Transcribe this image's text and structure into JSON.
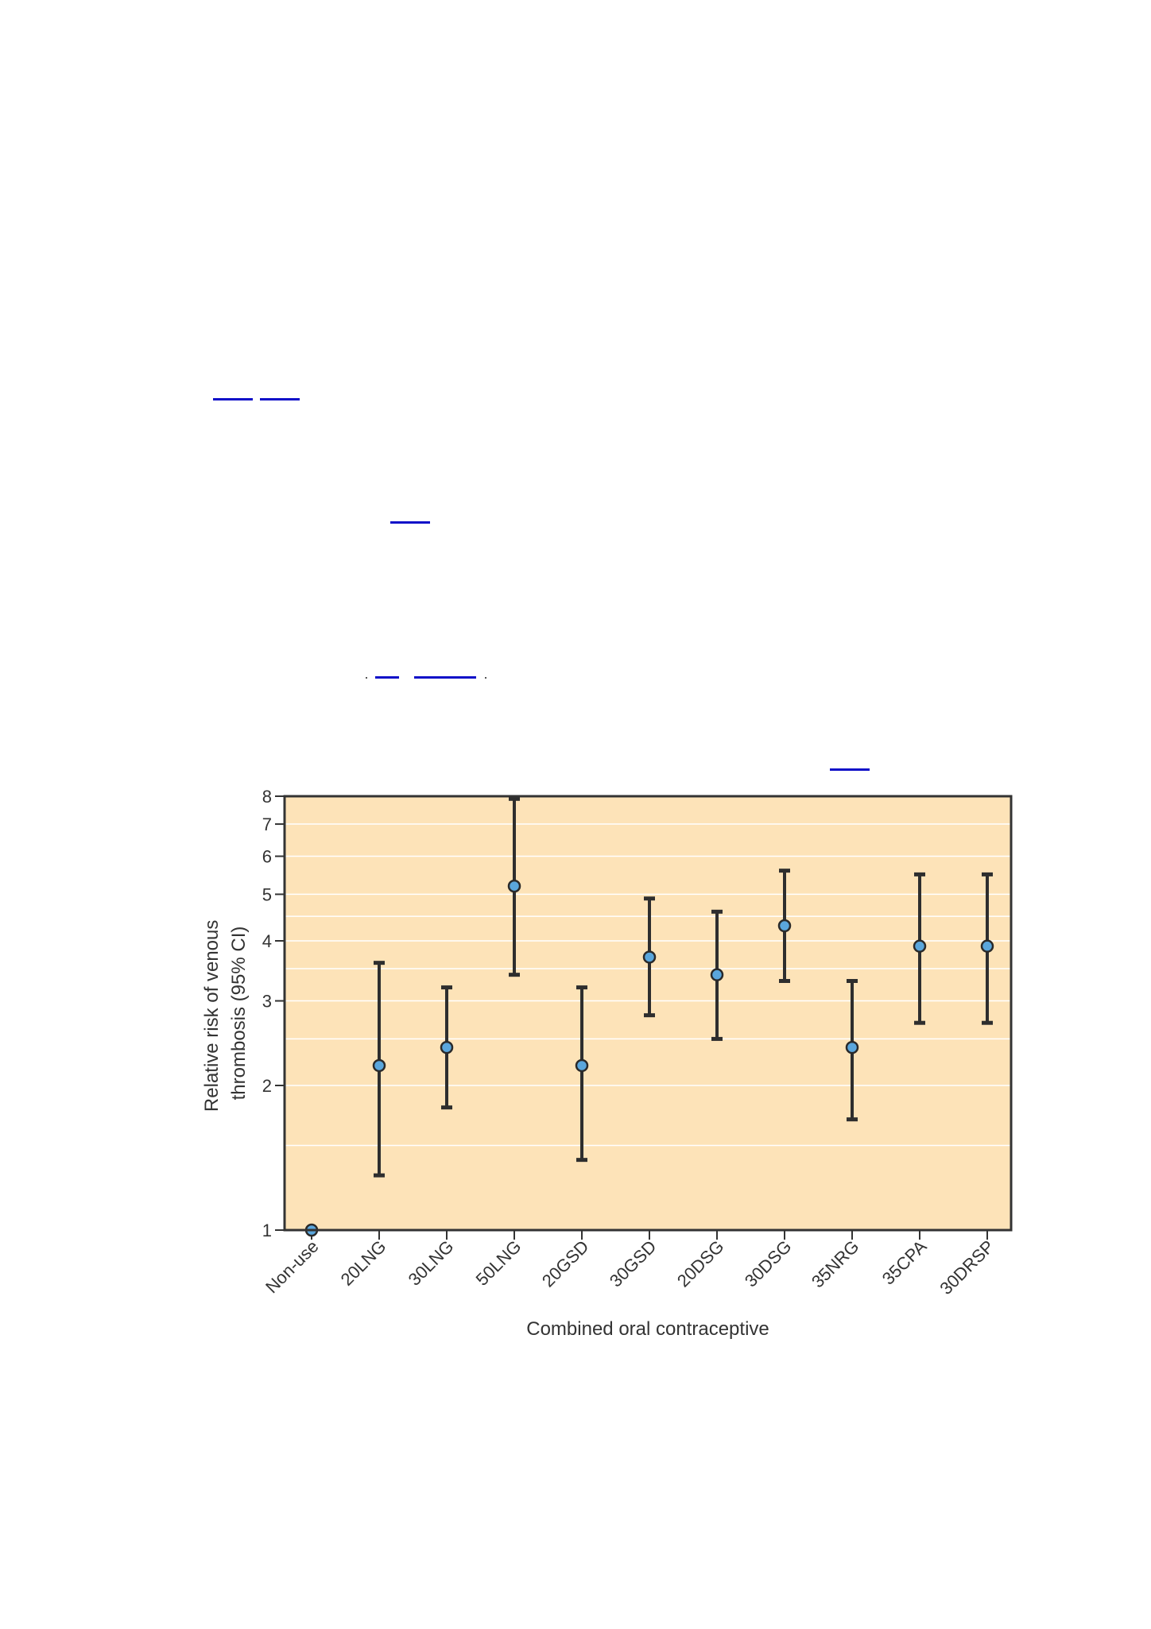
{
  "chart_data": {
    "type": "scatter",
    "subtype": "error-bar",
    "xlabel": "Combined oral contraceptive",
    "ylabel_lines": [
      "Relative risk of venous",
      "thrombosis (95% CI)"
    ],
    "yscale": "log",
    "ylim": [
      1,
      8
    ],
    "yticks": [
      1,
      2,
      3,
      4,
      5,
      6,
      7,
      8
    ],
    "grid": true,
    "categories": [
      "Non-use",
      "20LNG",
      "30LNG",
      "50LNG",
      "20GSD",
      "30GSD",
      "20DSG",
      "30DSG",
      "35NRG",
      "35CPA",
      "30DRSP"
    ],
    "points": [
      {
        "category": "Non-use",
        "value": 1.0,
        "low": null,
        "high": null
      },
      {
        "category": "20LNG",
        "value": 2.2,
        "low": 1.3,
        "high": 3.6
      },
      {
        "category": "30LNG",
        "value": 2.4,
        "low": 1.8,
        "high": 3.2
      },
      {
        "category": "50LNG",
        "value": 5.2,
        "low": 3.4,
        "high": 7.9
      },
      {
        "category": "20GSD",
        "value": 2.2,
        "low": 1.4,
        "high": 3.2
      },
      {
        "category": "30GSD",
        "value": 3.7,
        "low": 2.8,
        "high": 4.9
      },
      {
        "category": "20DSG",
        "value": 3.4,
        "low": 2.5,
        "high": 4.6
      },
      {
        "category": "30DSG",
        "value": 4.3,
        "low": 3.3,
        "high": 5.6
      },
      {
        "category": "35NRG",
        "value": 2.4,
        "low": 1.7,
        "high": 3.3
      },
      {
        "category": "35CPA",
        "value": 3.9,
        "low": 2.7,
        "high": 5.5
      },
      {
        "category": "30DRSP",
        "value": 3.9,
        "low": 2.7,
        "high": 5.5
      }
    ],
    "colors": {
      "plot_background": "#fde3b8",
      "grid": "#ffffff",
      "error_bar": "#2e2e2e",
      "marker_fill": "#5aa6dc",
      "marker_stroke": "#2a2a2a"
    }
  }
}
